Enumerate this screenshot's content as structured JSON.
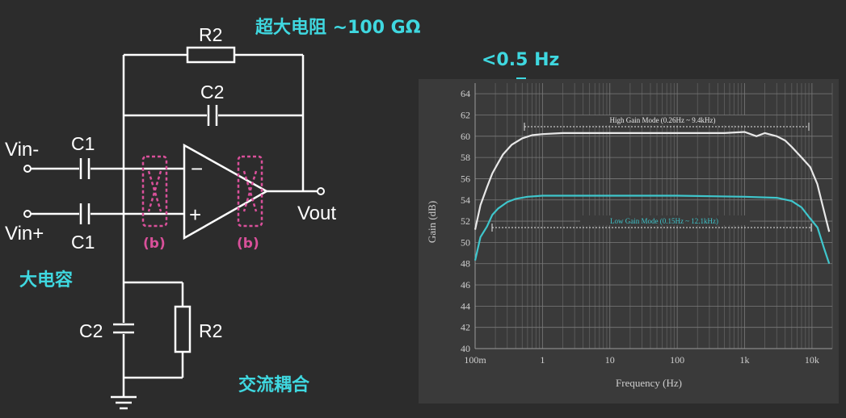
{
  "annotations": {
    "big_resistor": "超大电阻 ~100 GΩ",
    "big_capacitor": "大电容",
    "ac_coupling": "交流耦合",
    "low_cutoff": "<0.5 Hz"
  },
  "circuit": {
    "r2_top": "R2",
    "c2_top": "C2",
    "c1_top": "C1",
    "c1_bottom": "C1",
    "c2_bottom": "C2",
    "r2_bottom": "R2",
    "vin_minus": "Vin-",
    "vin_plus": "Vin+",
    "vout": "Vout",
    "opamp_minus": "−",
    "opamp_plus": "+",
    "chopper_left": "(b)",
    "chopper_right": "(b)"
  },
  "chart_data": {
    "type": "line",
    "xlabel": "Frequency (Hz)",
    "ylabel": "Gain (dB)",
    "x_scale": "log",
    "xlim": [
      0.1,
      20000
    ],
    "ylim": [
      40,
      65
    ],
    "x_ticks": [
      {
        "value": 0.1,
        "label": "100m"
      },
      {
        "value": 1,
        "label": "1"
      },
      {
        "value": 10,
        "label": "10"
      },
      {
        "value": 100,
        "label": "100"
      },
      {
        "value": 1000,
        "label": "1k"
      },
      {
        "value": 10000,
        "label": "10k"
      }
    ],
    "y_ticks": [
      40,
      42,
      44,
      46,
      48,
      50,
      52,
      54,
      56,
      58,
      60,
      62,
      64
    ],
    "grid": true,
    "series": [
      {
        "name": "High Gain Mode (0.26Hz ~ 9.4kHz)",
        "color": "#e8e8e8",
        "x": [
          0.1,
          0.12,
          0.15,
          0.18,
          0.22,
          0.26,
          0.35,
          0.5,
          0.7,
          1,
          2,
          5,
          10,
          50,
          100,
          500,
          1000,
          1500,
          2000,
          3000,
          4000,
          5000,
          7000,
          9400,
          12000,
          15000,
          18000
        ],
        "y": [
          51.2,
          53.5,
          55.2,
          56.5,
          57.5,
          58.3,
          59.2,
          59.8,
          60.1,
          60.2,
          60.3,
          60.3,
          60.3,
          60.3,
          60.3,
          60.3,
          60.4,
          60.0,
          60.3,
          60.0,
          59.6,
          59.0,
          58.0,
          57.1,
          55.5,
          53.0,
          51.0
        ]
      },
      {
        "name": "Low Gain Mode (0.15Hz ~ 12.1kHz)",
        "color": "#3fc6cc",
        "x": [
          0.1,
          0.12,
          0.15,
          0.18,
          0.22,
          0.3,
          0.4,
          0.6,
          1,
          2,
          10,
          100,
          1000,
          3000,
          5000,
          7000,
          9000,
          12100,
          15000,
          18000
        ],
        "y": [
          48.3,
          50.5,
          51.5,
          52.6,
          53.2,
          53.8,
          54.1,
          54.3,
          54.4,
          54.4,
          54.4,
          54.4,
          54.3,
          54.2,
          53.9,
          53.3,
          52.4,
          51.4,
          49.5,
          48.0
        ]
      }
    ]
  }
}
